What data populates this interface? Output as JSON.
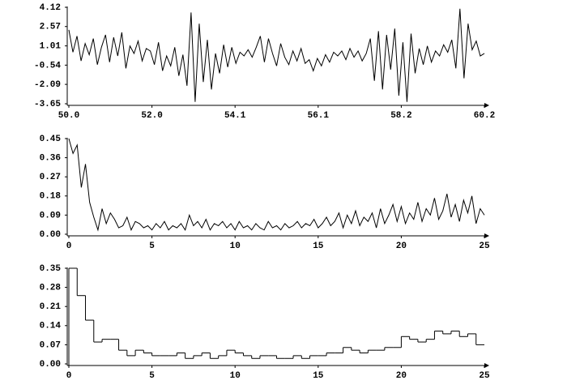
{
  "chart_data": [
    {
      "type": "line",
      "color": "#000000",
      "xlim": [
        50,
        60.2
      ],
      "ylim": [
        -3.65,
        4.12
      ],
      "xticks": [
        {
          "value": 50,
          "label": "50.0"
        },
        {
          "value": 52.04,
          "label": "52.0"
        },
        {
          "value": 54.08,
          "label": "54.1"
        },
        {
          "value": 56.12,
          "label": "56.1"
        },
        {
          "value": 58.16,
          "label": "58.2"
        },
        60.2
      ],
      "yticks": [
        -3.65,
        -2.09,
        -0.54,
        1.01,
        2.57,
        4.12
      ],
      "x": [
        50,
        50.1,
        50.2,
        50.3,
        50.4,
        50.5,
        50.6,
        50.7,
        50.8,
        50.9,
        51,
        51.1,
        51.2,
        51.3,
        51.4,
        51.5,
        51.6,
        51.7,
        51.8,
        51.9,
        52,
        52.1,
        52.2,
        52.3,
        52.4,
        52.5,
        52.6,
        52.7,
        52.8,
        52.9,
        53,
        53.1,
        53.2,
        53.3,
        53.4,
        53.5,
        53.6,
        53.7,
        53.8,
        53.9,
        54,
        54.1,
        54.2,
        54.3,
        54.4,
        54.5,
        54.6,
        54.7,
        54.8,
        54.9,
        55,
        55.1,
        55.2,
        55.3,
        55.4,
        55.5,
        55.6,
        55.7,
        55.8,
        55.9,
        56,
        56.1,
        56.2,
        56.3,
        56.4,
        56.5,
        56.6,
        56.7,
        56.8,
        56.9,
        57,
        57.1,
        57.2,
        57.3,
        57.4,
        57.5,
        57.6,
        57.7,
        57.8,
        57.9,
        58,
        58.1,
        58.2,
        58.3,
        58.4,
        58.5,
        58.6,
        58.7,
        58.8,
        58.9,
        59,
        59.1,
        59.2,
        59.3,
        59.4,
        59.5,
        59.6,
        59.7,
        59.8,
        59.9,
        60,
        60.1,
        60.2
      ],
      "values": [
        2.3,
        0.5,
        1.8,
        -0.2,
        1.2,
        0.3,
        1.6,
        -0.5,
        0.9,
        1.9,
        -0.3,
        1.7,
        0.2,
        2.1,
        -0.8,
        1.0,
        0.4,
        1.4,
        -0.2,
        0.8,
        0.6,
        -0.5,
        1.3,
        -1.0,
        0.2,
        -0.6,
        0.9,
        -1.4,
        0.3,
        -2.2,
        3.7,
        -3.5,
        2.8,
        -1.9,
        1.5,
        -2.5,
        0.4,
        -1.2,
        1.1,
        -0.7,
        0.9,
        -0.4,
        0.5,
        0.2,
        0.7,
        0.1,
        0.9,
        1.8,
        -0.3,
        1.6,
        0.4,
        -0.6,
        1.2,
        0.1,
        -0.5,
        0.6,
        -0.2,
        0.8,
        -0.4,
        -0.1,
        -1.0,
        0.0,
        -0.6,
        0.3,
        -0.3,
        0.5,
        0.2,
        0.6,
        -0.1,
        0.8,
        0.1,
        0.6,
        -0.2,
        0.4,
        1.6,
        -1.8,
        2.2,
        -2.5,
        1.9,
        -0.9,
        2.4,
        -3.0,
        1.3,
        -3.5,
        2.0,
        -1.2,
        0.8,
        -0.5,
        1.0,
        -0.3,
        0.6,
        0.2,
        1.1,
        0.5,
        1.5,
        -0.8,
        4.0,
        -1.6,
        2.8,
        0.7,
        1.4,
        0.2,
        0.4
      ]
    },
    {
      "type": "line",
      "color": "#000000",
      "xlim": [
        0,
        25
      ],
      "ylim": [
        0,
        0.45
      ],
      "xticks": [
        0,
        5,
        10,
        15,
        20,
        25
      ],
      "yticks": [
        {
          "value": 0,
          "label": "0.00"
        },
        0.09,
        0.18,
        0.27,
        0.36,
        0.45
      ],
      "x": [
        0,
        0.25,
        0.5,
        0.75,
        1,
        1.25,
        1.5,
        1.75,
        2,
        2.25,
        2.5,
        2.75,
        3,
        3.25,
        3.5,
        3.75,
        4,
        4.25,
        4.5,
        4.75,
        5,
        5.25,
        5.5,
        5.75,
        6,
        6.25,
        6.5,
        6.75,
        7,
        7.25,
        7.5,
        7.75,
        8,
        8.25,
        8.5,
        8.75,
        9,
        9.25,
        9.5,
        9.75,
        10,
        10.25,
        10.5,
        10.75,
        11,
        11.25,
        11.5,
        11.75,
        12,
        12.25,
        12.5,
        12.75,
        13,
        13.25,
        13.5,
        13.75,
        14,
        14.25,
        14.5,
        14.75,
        15,
        15.25,
        15.5,
        15.75,
        16,
        16.25,
        16.5,
        16.75,
        17,
        17.25,
        17.5,
        17.75,
        18,
        18.25,
        18.5,
        18.75,
        19,
        19.25,
        19.5,
        19.75,
        20,
        20.25,
        20.5,
        20.75,
        21,
        21.25,
        21.5,
        21.75,
        22,
        22.25,
        22.5,
        22.75,
        23,
        23.25,
        23.5,
        23.75,
        24,
        24.25,
        24.5,
        24.75,
        25
      ],
      "values": [
        0.45,
        0.38,
        0.42,
        0.22,
        0.33,
        0.15,
        0.08,
        0.02,
        0.12,
        0.05,
        0.1,
        0.07,
        0.03,
        0.04,
        0.08,
        0.02,
        0.06,
        0.05,
        0.03,
        0.04,
        0.02,
        0.05,
        0.03,
        0.06,
        0.02,
        0.04,
        0.03,
        0.05,
        0.02,
        0.09,
        0.04,
        0.06,
        0.03,
        0.07,
        0.02,
        0.05,
        0.04,
        0.06,
        0.03,
        0.05,
        0.02,
        0.06,
        0.03,
        0.04,
        0.02,
        0.05,
        0.03,
        0.02,
        0.06,
        0.03,
        0.04,
        0.02,
        0.05,
        0.03,
        0.04,
        0.06,
        0.03,
        0.05,
        0.04,
        0.07,
        0.03,
        0.05,
        0.08,
        0.04,
        0.06,
        0.1,
        0.03,
        0.09,
        0.05,
        0.11,
        0.04,
        0.08,
        0.06,
        0.1,
        0.03,
        0.12,
        0.05,
        0.09,
        0.14,
        0.06,
        0.13,
        0.05,
        0.1,
        0.07,
        0.15,
        0.06,
        0.12,
        0.09,
        0.17,
        0.07,
        0.11,
        0.19,
        0.08,
        0.14,
        0.06,
        0.16,
        0.1,
        0.18,
        0.05,
        0.12,
        0.09
      ]
    },
    {
      "type": "histogram",
      "color": "#000000",
      "xlim": [
        0,
        25
      ],
      "ylim": [
        0,
        0.35
      ],
      "xticks": [
        0,
        5,
        10,
        15,
        20,
        25
      ],
      "yticks": [
        {
          "value": 0,
          "label": "0.00"
        },
        0.07,
        0.14,
        0.21,
        0.28,
        0.35
      ],
      "bins": [
        0,
        0.5,
        1,
        1.5,
        2,
        2.5,
        3,
        3.5,
        4,
        4.5,
        5,
        5.5,
        6,
        6.5,
        7,
        7.5,
        8,
        8.5,
        9,
        9.5,
        10,
        10.5,
        11,
        11.5,
        12,
        12.5,
        13,
        13.5,
        14,
        14.5,
        15,
        15.5,
        16,
        16.5,
        17,
        17.5,
        18,
        18.5,
        19,
        19.5,
        20,
        20.5,
        21,
        21.5,
        22,
        22.5,
        23,
        23.5,
        24,
        24.5,
        25
      ],
      "values": [
        0.35,
        0.25,
        0.16,
        0.08,
        0.09,
        0.09,
        0.05,
        0.03,
        0.05,
        0.04,
        0.03,
        0.03,
        0.03,
        0.04,
        0.02,
        0.03,
        0.04,
        0.02,
        0.03,
        0.05,
        0.04,
        0.03,
        0.02,
        0.03,
        0.03,
        0.02,
        0.02,
        0.03,
        0.02,
        0.03,
        0.03,
        0.04,
        0.04,
        0.06,
        0.05,
        0.04,
        0.05,
        0.05,
        0.06,
        0.06,
        0.1,
        0.09,
        0.08,
        0.09,
        0.12,
        0.11,
        0.12,
        0.1,
        0.11,
        0.07
      ]
    }
  ]
}
